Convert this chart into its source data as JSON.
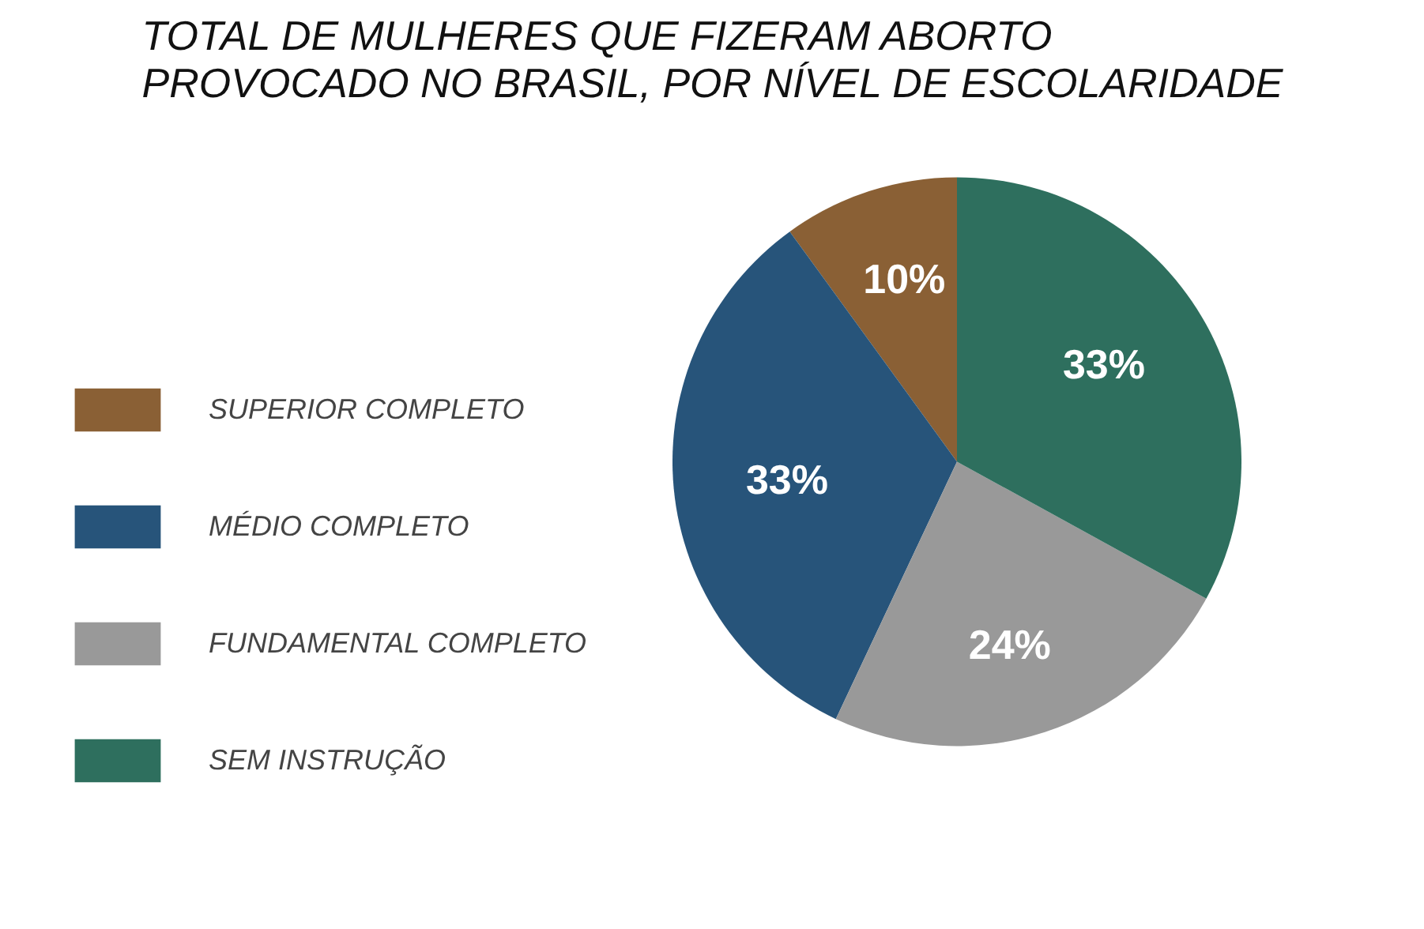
{
  "chart_data": {
    "type": "pie",
    "title": "TOTAL DE MULHERES QUE FIZERAM ABORTO\nPROVOCADO NO BRASIL, POR NÍVEL DE ESCOLARIDADE",
    "categories": [
      "SUPERIOR COMPLETO",
      "MÉDIO COMPLETO",
      "FUNDAMENTAL COMPLETO",
      "SEM INSTRUÇÃO"
    ],
    "values": [
      10,
      33,
      24,
      33
    ],
    "colors": [
      "#8a6035",
      "#27547a",
      "#999999",
      "#2e6f5e"
    ],
    "value_labels": [
      "10%",
      "33%",
      "24%",
      "33%"
    ],
    "legend": "left"
  }
}
